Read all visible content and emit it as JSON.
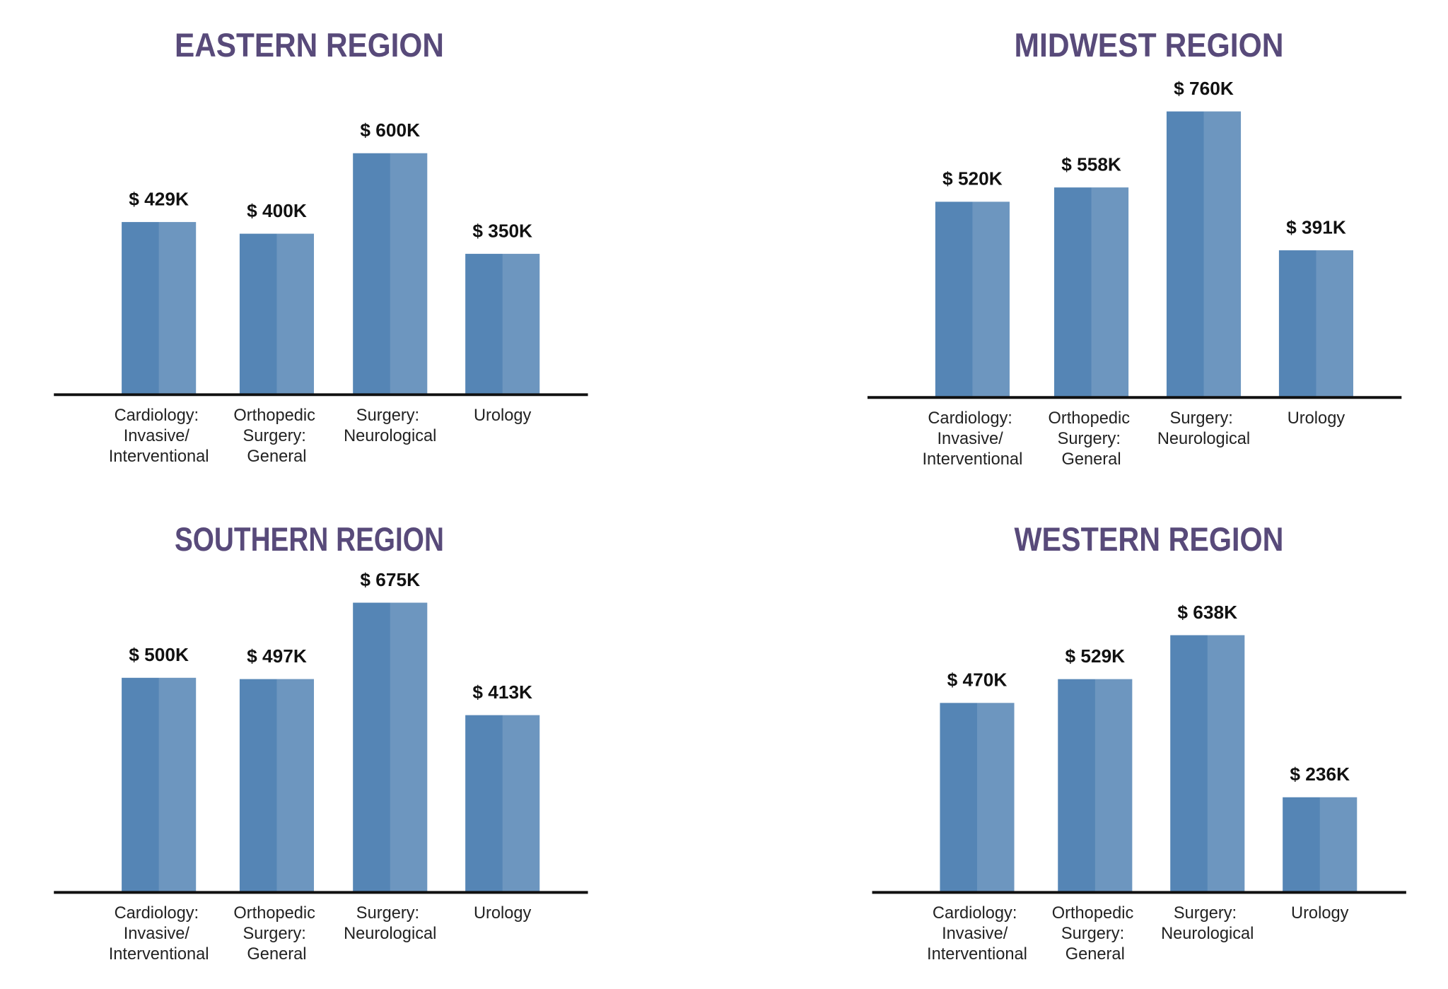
{
  "chart_data": [
    {
      "type": "bar",
      "title": "EASTERN REGION",
      "color": "#5585b5",
      "categories": [
        "Cardiology: Invasive/ Interventional",
        "Orthopedic Surgery: General",
        "Surgery: Neurological",
        "Urology"
      ],
      "values": [
        429,
        400,
        600,
        350
      ],
      "value_labels": [
        "$ 429K",
        "$ 400K",
        "$ 600K",
        "$ 350K"
      ]
    },
    {
      "type": "bar",
      "title": "MIDWEST REGION",
      "color": "#5585b5",
      "categories": [
        "Cardiology: Invasive/ Interventional",
        "Orthopedic Surgery: General",
        "Surgery: Neurological",
        "Urology"
      ],
      "values": [
        520,
        558,
        760,
        391
      ],
      "value_labels": [
        "$ 520K",
        "$ 558K",
        "$ 760K",
        "$ 391K"
      ]
    },
    {
      "type": "bar",
      "title": "SOUTHERN REGION",
      "color": "#5585b5",
      "categories": [
        "Cardiology: Invasive/ Interventional",
        "Orthopedic Surgery: General",
        "Surgery: Neurological",
        "Urology"
      ],
      "values": [
        500,
        497,
        675,
        413
      ],
      "value_labels": [
        "$ 500K",
        "$ 497K",
        "$ 675K",
        "$ 413K"
      ]
    },
    {
      "type": "bar",
      "title": "WESTERN REGION",
      "color": "#5585b5",
      "categories": [
        "Cardiology: Invasive/ Interventional",
        "Orthopedic Surgery: General",
        "Surgery: Neurological",
        "Urology"
      ],
      "values": [
        470,
        529,
        638,
        236
      ],
      "value_labels": [
        "$ 470K",
        "$ 529K",
        "$ 638K",
        "$ 236K"
      ]
    }
  ]
}
